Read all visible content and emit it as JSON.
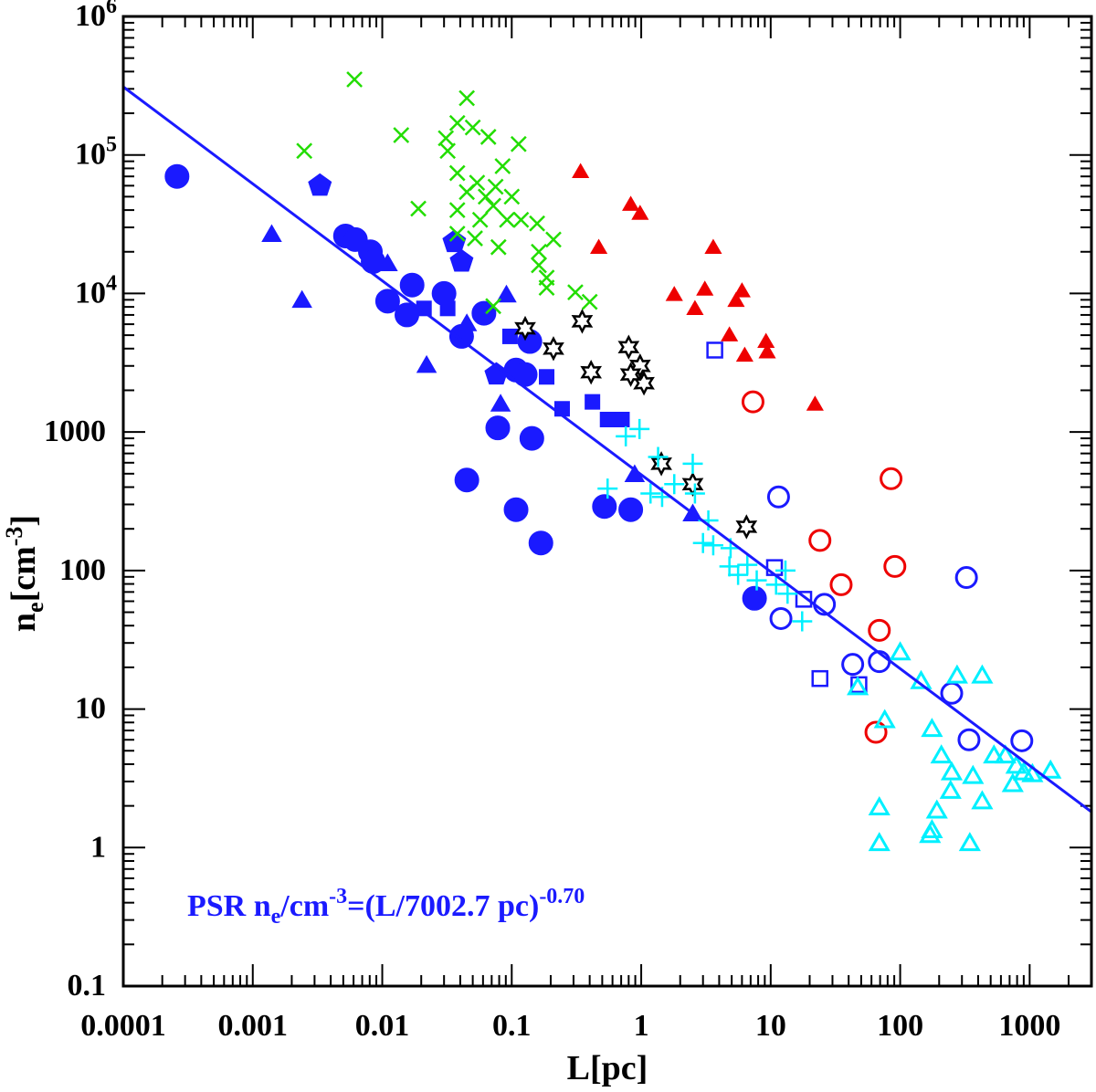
{
  "chart_data": {
    "type": "scatter",
    "xscale": "log",
    "yscale": "log",
    "xlim": [
      0.0001,
      3000
    ],
    "ylim": [
      0.1,
      1000000
    ],
    "xlabel": "L[pc]",
    "ylabel": {
      "base": "n",
      "sub": "e",
      "unit_open": "[cm",
      "unit_exp": "-3",
      "unit_close": "]"
    },
    "xticks": [
      "0.0001",
      "0.001",
      "0.01",
      "0.1",
      "1",
      "10",
      "100",
      "1000"
    ],
    "xtick_values": [
      0.0001,
      0.001,
      0.01,
      0.1,
      1,
      10,
      100,
      1000
    ],
    "yticks": [
      {
        "value": 1000000,
        "base": "10",
        "exp": "6"
      },
      {
        "value": 100000,
        "base": "10",
        "exp": "5"
      },
      {
        "value": 10000,
        "base": "10",
        "exp": "4"
      },
      {
        "value": 1000,
        "base": "1000",
        "exp": ""
      },
      {
        "value": 100,
        "base": "100",
        "exp": ""
      },
      {
        "value": 10,
        "base": "10",
        "exp": ""
      },
      {
        "value": 1,
        "base": "1",
        "exp": ""
      },
      {
        "value": 0.1,
        "base": "0.1",
        "exp": ""
      }
    ],
    "fit": {
      "label_a": "PSR n",
      "label_sub": "e",
      "label_b": "/cm",
      "label_exp1": "-3",
      "label_c": "=(L/7002.7 pc)",
      "label_exp2": "-0.70",
      "L0": 7002.7,
      "slope": -0.7,
      "color": "#1a1aff"
    },
    "series": [
      {
        "name": "blue-filled-circles",
        "marker": "circle",
        "filled": true,
        "color": "#1a1aff",
        "points": [
          [
            0.00026,
            70000
          ],
          [
            0.0052,
            26000
          ],
          [
            0.0062,
            24500
          ],
          [
            0.0081,
            20000
          ],
          [
            0.0085,
            17000
          ],
          [
            0.011,
            8800
          ],
          [
            0.0155,
            7000
          ],
          [
            0.017,
            11500
          ],
          [
            0.03,
            10000
          ],
          [
            0.041,
            4900
          ],
          [
            0.061,
            7200
          ],
          [
            0.108,
            2800
          ],
          [
            0.127,
            2600
          ],
          [
            0.138,
            4500
          ],
          [
            0.078,
            1070
          ],
          [
            0.143,
            900
          ],
          [
            0.045,
            450
          ],
          [
            0.108,
            275
          ],
          [
            0.168,
            158
          ],
          [
            0.52,
            290
          ],
          [
            0.83,
            275
          ],
          [
            7.5,
            63
          ]
        ]
      },
      {
        "name": "blue-filled-triangles",
        "marker": "triangle",
        "filled": true,
        "color": "#1a1aff",
        "points": [
          [
            0.0014,
            26000
          ],
          [
            0.0024,
            8700
          ],
          [
            0.022,
            2950
          ],
          [
            0.091,
            9500
          ],
          [
            0.082,
            1550
          ],
          [
            0.89,
            480
          ],
          [
            2.5,
            250
          ],
          [
            0.045,
            5900
          ],
          [
            0.011,
            16000
          ]
        ]
      },
      {
        "name": "blue-pentagons",
        "marker": "pentagon",
        "filled": true,
        "color": "#1a1aff",
        "points": [
          [
            0.0033,
            60000
          ],
          [
            0.036,
            23500
          ],
          [
            0.041,
            17000
          ],
          [
            0.076,
            2600
          ]
        ]
      },
      {
        "name": "blue-filled-squares",
        "marker": "square",
        "filled": true,
        "color": "#1a1aff",
        "points": [
          [
            0.021,
            7800
          ],
          [
            0.032,
            7800
          ],
          [
            0.097,
            4900
          ],
          [
            0.186,
            2500
          ],
          [
            0.245,
            1470
          ],
          [
            0.42,
            1650
          ],
          [
            0.55,
            1230
          ],
          [
            0.71,
            1230
          ]
        ]
      },
      {
        "name": "blue-open-squares",
        "marker": "square",
        "filled": false,
        "color": "#1a1aff",
        "points": [
          [
            3.7,
            3900
          ],
          [
            10.7,
            105
          ],
          [
            18,
            62
          ],
          [
            24,
            16.6
          ],
          [
            48,
            15
          ]
        ]
      },
      {
        "name": "blue-open-circles",
        "marker": "circle",
        "filled": false,
        "color": "#1a1aff",
        "points": [
          [
            11.5,
            340
          ],
          [
            12,
            45
          ],
          [
            26,
            57
          ],
          [
            43,
            21
          ],
          [
            69,
            22
          ],
          [
            250,
            13
          ],
          [
            340,
            6
          ],
          [
            325,
            89
          ],
          [
            870,
            5.9
          ]
        ]
      },
      {
        "name": "red-filled-triangles",
        "marker": "triangle-small",
        "filled": true,
        "color": "#ee0000",
        "points": [
          [
            0.34,
            74000
          ],
          [
            0.83,
            43000
          ],
          [
            0.98,
            37000
          ],
          [
            0.47,
            21000
          ],
          [
            1.8,
            9600
          ],
          [
            2.6,
            7600
          ],
          [
            3.6,
            21000
          ],
          [
            3.1,
            10500
          ],
          [
            5.4,
            8700
          ],
          [
            6.0,
            10200
          ],
          [
            4.8,
            4900
          ],
          [
            6.3,
            3500
          ],
          [
            9.2,
            4400
          ],
          [
            9.4,
            3700
          ],
          [
            22,
            1550
          ]
        ]
      },
      {
        "name": "red-open-circles",
        "marker": "circle",
        "filled": false,
        "color": "#ee0000",
        "points": [
          [
            7.3,
            1650
          ],
          [
            85,
            460
          ],
          [
            24,
            165
          ],
          [
            35,
            79
          ],
          [
            91,
            107
          ],
          [
            69,
            37
          ],
          [
            65,
            6.8
          ]
        ]
      },
      {
        "name": "black-stars",
        "marker": "star",
        "filled": false,
        "color": "#000000",
        "points": [
          [
            0.127,
            5600
          ],
          [
            0.21,
            4000
          ],
          [
            0.35,
            6300
          ],
          [
            0.41,
            2700
          ],
          [
            0.8,
            4100
          ],
          [
            0.98,
            3000
          ],
          [
            1.05,
            2250
          ],
          [
            0.83,
            2600
          ],
          [
            1.43,
            590
          ],
          [
            2.5,
            420
          ],
          [
            6.5,
            207
          ]
        ]
      },
      {
        "name": "green-crosses",
        "marker": "x",
        "filled": false,
        "color": "#22dd00",
        "points": [
          [
            0.0061,
            351000
          ],
          [
            0.0025,
            107000
          ],
          [
            0.014,
            139000
          ],
          [
            0.019,
            41000
          ],
          [
            0.045,
            257000
          ],
          [
            0.038,
            170000
          ],
          [
            0.031,
            132000
          ],
          [
            0.05,
            158000
          ],
          [
            0.066,
            135000
          ],
          [
            0.113,
            120000
          ],
          [
            0.085,
            83000
          ],
          [
            0.032,
            107000
          ],
          [
            0.038,
            74000
          ],
          [
            0.045,
            54000
          ],
          [
            0.054,
            63000
          ],
          [
            0.063,
            50000
          ],
          [
            0.075,
            59000
          ],
          [
            0.038,
            40000
          ],
          [
            0.057,
            34000
          ],
          [
            0.1,
            50000
          ],
          [
            0.118,
            34000
          ],
          [
            0.157,
            32000
          ],
          [
            0.038,
            27000
          ],
          [
            0.052,
            25000
          ],
          [
            0.079,
            21600
          ],
          [
            0.162,
            20000
          ],
          [
            0.21,
            24500
          ],
          [
            0.162,
            16000
          ],
          [
            0.186,
            13000
          ],
          [
            0.186,
            11000
          ],
          [
            0.31,
            10200
          ],
          [
            0.4,
            8700
          ],
          [
            0.072,
            8100
          ],
          [
            0.072,
            43000
          ],
          [
            0.092,
            34000
          ]
        ]
      },
      {
        "name": "cyan-plus",
        "marker": "plus",
        "filled": false,
        "color": "#00f0ff",
        "points": [
          [
            0.76,
            930
          ],
          [
            0.97,
            1050
          ],
          [
            1.35,
            660
          ],
          [
            1.18,
            360
          ],
          [
            1.8,
            420
          ],
          [
            2.5,
            590
          ],
          [
            1.45,
            340
          ],
          [
            2.6,
            360
          ],
          [
            3.3,
            230
          ],
          [
            3.0,
            158
          ],
          [
            3.6,
            152
          ],
          [
            4.9,
            145
          ],
          [
            4.8,
            107
          ],
          [
            5.6,
            93
          ],
          [
            6.6,
            110
          ],
          [
            7.8,
            85
          ],
          [
            13,
            100
          ],
          [
            13.5,
            68
          ],
          [
            17.5,
            43
          ],
          [
            11,
            79
          ],
          [
            0.55,
            390
          ]
        ]
      },
      {
        "name": "cyan-open-triangles",
        "marker": "triangle",
        "filled": false,
        "color": "#00f0ff",
        "points": [
          [
            47,
            14
          ],
          [
            100,
            25
          ],
          [
            76,
            8.1
          ],
          [
            145,
            15.5
          ],
          [
            275,
            17
          ],
          [
            430,
            17
          ],
          [
            176,
            7.0
          ],
          [
            208,
            4.5
          ],
          [
            250,
            3.4
          ],
          [
            365,
            3.2
          ],
          [
            245,
            2.5
          ],
          [
            192,
            1.8
          ],
          [
            176,
            1.3
          ],
          [
            69,
            1.9
          ],
          [
            69,
            1.05
          ],
          [
            170,
            1.2
          ],
          [
            345,
            1.05
          ],
          [
            530,
            4.5
          ],
          [
            790,
            3.8
          ],
          [
            900,
            3.4
          ],
          [
            430,
            2.1
          ],
          [
            1050,
            3.3
          ],
          [
            650,
            4.5
          ],
          [
            740,
            2.8
          ],
          [
            1450,
            3.5
          ]
        ]
      }
    ]
  }
}
